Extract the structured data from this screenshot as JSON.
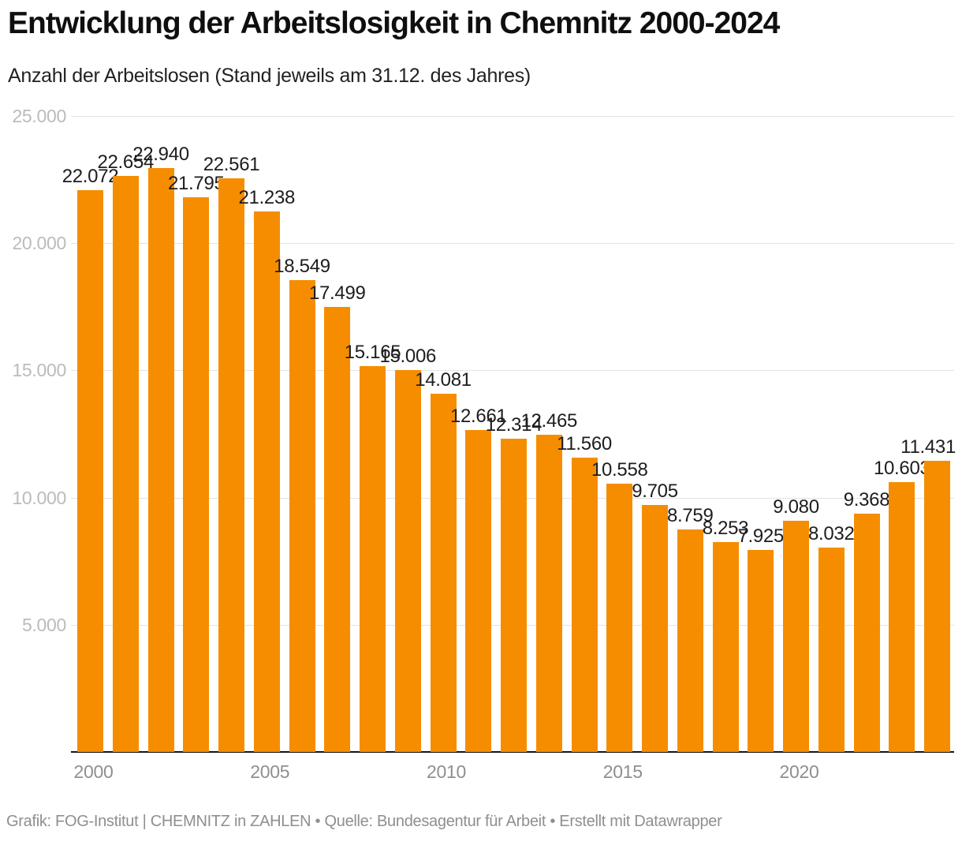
{
  "header": {
    "title": "Entwicklung der Arbeitslosigkeit in Chemnitz 2000-2024",
    "subtitle": "Anzahl der Arbeitslosen (Stand jeweils am 31.12. des Jahres)"
  },
  "chart_data": {
    "type": "bar",
    "title": "Entwicklung der Arbeitslosigkeit in Chemnitz 2000-2024",
    "subtitle": "Anzahl der Arbeitslosen (Stand jeweils am 31.12. des Jahres)",
    "categories": [
      "2000",
      "2001",
      "2002",
      "2003",
      "2004",
      "2005",
      "2006",
      "2007",
      "2008",
      "2009",
      "2010",
      "2011",
      "2012",
      "2013",
      "2014",
      "2015",
      "2016",
      "2017",
      "2018",
      "2019",
      "2020",
      "2021",
      "2022",
      "2023",
      "2024"
    ],
    "values": [
      22072,
      22654,
      22940,
      21795,
      22561,
      21238,
      18549,
      17499,
      15165,
      15006,
      14081,
      12661,
      12314,
      12465,
      11560,
      10558,
      9705,
      8759,
      8253,
      7925,
      9080,
      8032,
      9368,
      10603,
      11431
    ],
    "xlabel": "",
    "ylabel": "",
    "ylim": [
      0,
      25000
    ],
    "grid": true,
    "legend": "none",
    "yticks": [
      {
        "value": 5000,
        "label": "5.000"
      },
      {
        "value": 10000,
        "label": "10.000"
      },
      {
        "value": 15000,
        "label": "15.000"
      },
      {
        "value": 20000,
        "label": "20.000"
      },
      {
        "value": 25000,
        "label": "25.000"
      }
    ],
    "xticks": [
      "2000",
      "2005",
      "2010",
      "2015",
      "2020"
    ],
    "colors": {
      "bar": "#f68d00",
      "gridline": "#e3e3e3",
      "axis_line": "#141414",
      "ytick_label": "#bbbbbb",
      "xtick_label": "#8f8f8f",
      "value_label": "#1d1d1d"
    }
  },
  "footer": {
    "text": "Grafik: FOG-Institut | CHEMNITZ in ZAHLEN • Quelle: Bundesagentur für Arbeit • Erstellt mit Datawrapper"
  }
}
